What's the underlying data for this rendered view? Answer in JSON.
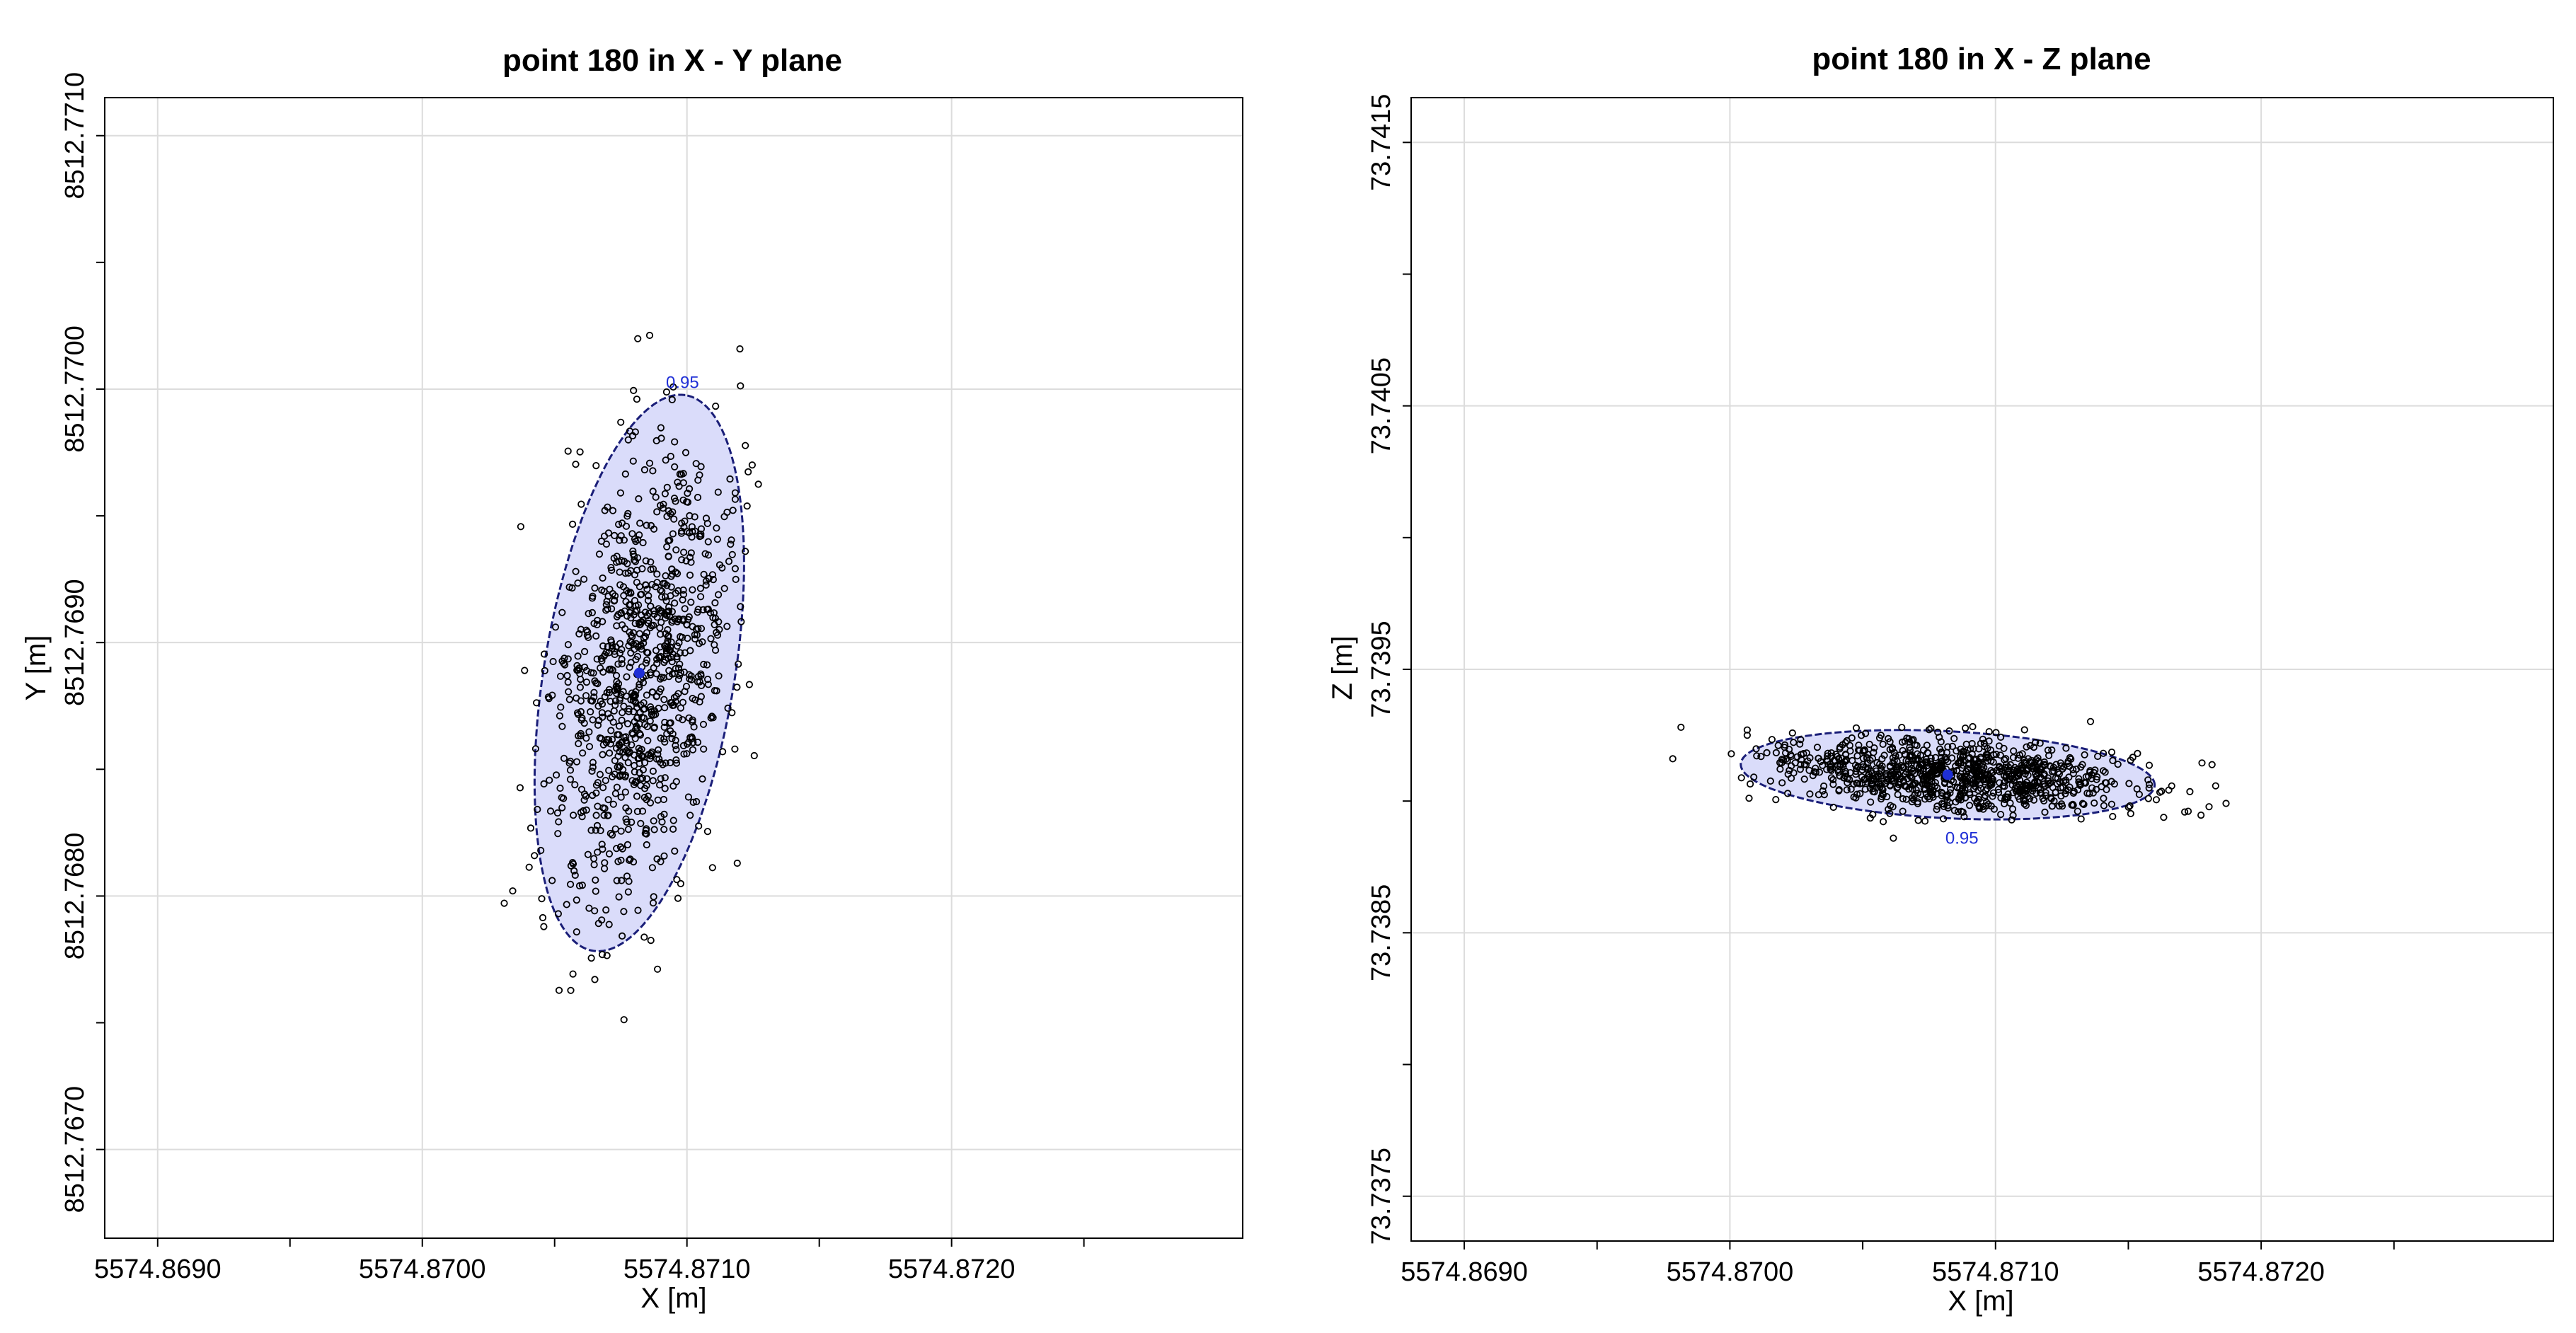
{
  "chart_data": [
    {
      "type": "scatter",
      "title": "point  180 in X - Y plane",
      "xlabel": "X [m]",
      "ylabel": "Y [m]",
      "xlim": [
        5574.8688,
        5574.8731
      ],
      "ylim": [
        8512.76665,
        8512.77115
      ],
      "x_ticks": [
        "5574.8690",
        "5574.8700",
        "5574.8710",
        "5574.8720"
      ],
      "x_tick_values": [
        5574.869,
        5574.87,
        5574.871,
        5574.872
      ],
      "x_minor_tick_values": [
        5574.8695,
        5574.8705,
        5574.8715,
        5574.8725
      ],
      "y_ticks": [
        "8512.7670",
        "8512.7680",
        "8512.7690",
        "8512.7700",
        "8512.7710"
      ],
      "y_tick_values": [
        8512.767,
        8512.768,
        8512.769,
        8512.77,
        8512.771
      ],
      "y_minor_tick_values": [
        8512.7675,
        8512.7685,
        8512.7695,
        8512.7705
      ],
      "grid": true,
      "legend": "none",
      "center": [
        5574.87082,
        8512.76888
      ],
      "ellipse": {
        "center": [
          5574.87082,
          8512.76888
        ],
        "semi_major": 0.00111,
        "semi_minor": 0.00036,
        "angle_deg_from_x": 81,
        "label": "0.95"
      },
      "samples": {
        "count": 1000,
        "sigma_major": 0.00045,
        "sigma_minor": 0.00015,
        "seed": 180
      },
      "colors": {
        "points": "#000000",
        "ellipse_fill": "#dadcfa",
        "ellipse_edge": "#1a1e78",
        "center": "#1f2fd6"
      }
    },
    {
      "type": "scatter",
      "title": "point  180 in X - Z plane",
      "xlabel": "X [m]",
      "ylabel": "Z [m]",
      "xlim": [
        5574.8688,
        5574.8731
      ],
      "ylim": [
        73.73733,
        73.74167
      ],
      "x_ticks": [
        "5574.8690",
        "5574.8700",
        "5574.8710",
        "5574.8720"
      ],
      "x_tick_values": [
        5574.869,
        5574.87,
        5574.871,
        5574.872
      ],
      "x_minor_tick_values": [
        5574.8695,
        5574.8705,
        5574.8715,
        5574.8725
      ],
      "y_ticks": [
        "73.7375",
        "73.7385",
        "73.7395",
        "73.7405",
        "73.7415"
      ],
      "y_tick_values": [
        73.7375,
        73.7385,
        73.7395,
        73.7405,
        73.7415
      ],
      "y_minor_tick_values": [
        73.738,
        73.739,
        73.74,
        73.741
      ],
      "grid": true,
      "legend": "none",
      "center": [
        5574.87082,
        73.7391
      ],
      "ellipse": {
        "center": [
          5574.87082,
          73.7391
        ],
        "semi_major": 0.00078,
        "semi_minor": 0.000165,
        "angle_deg_from_x": -3,
        "label": "0.95"
      },
      "samples": {
        "count": 1000,
        "sigma_major": 0.00032,
        "sigma_minor": 6.8e-05,
        "seed": 181
      },
      "colors": {
        "points": "#000000",
        "ellipse_fill": "#dadcfa",
        "ellipse_edge": "#1a1e78",
        "center": "#1f2fd6"
      }
    }
  ]
}
